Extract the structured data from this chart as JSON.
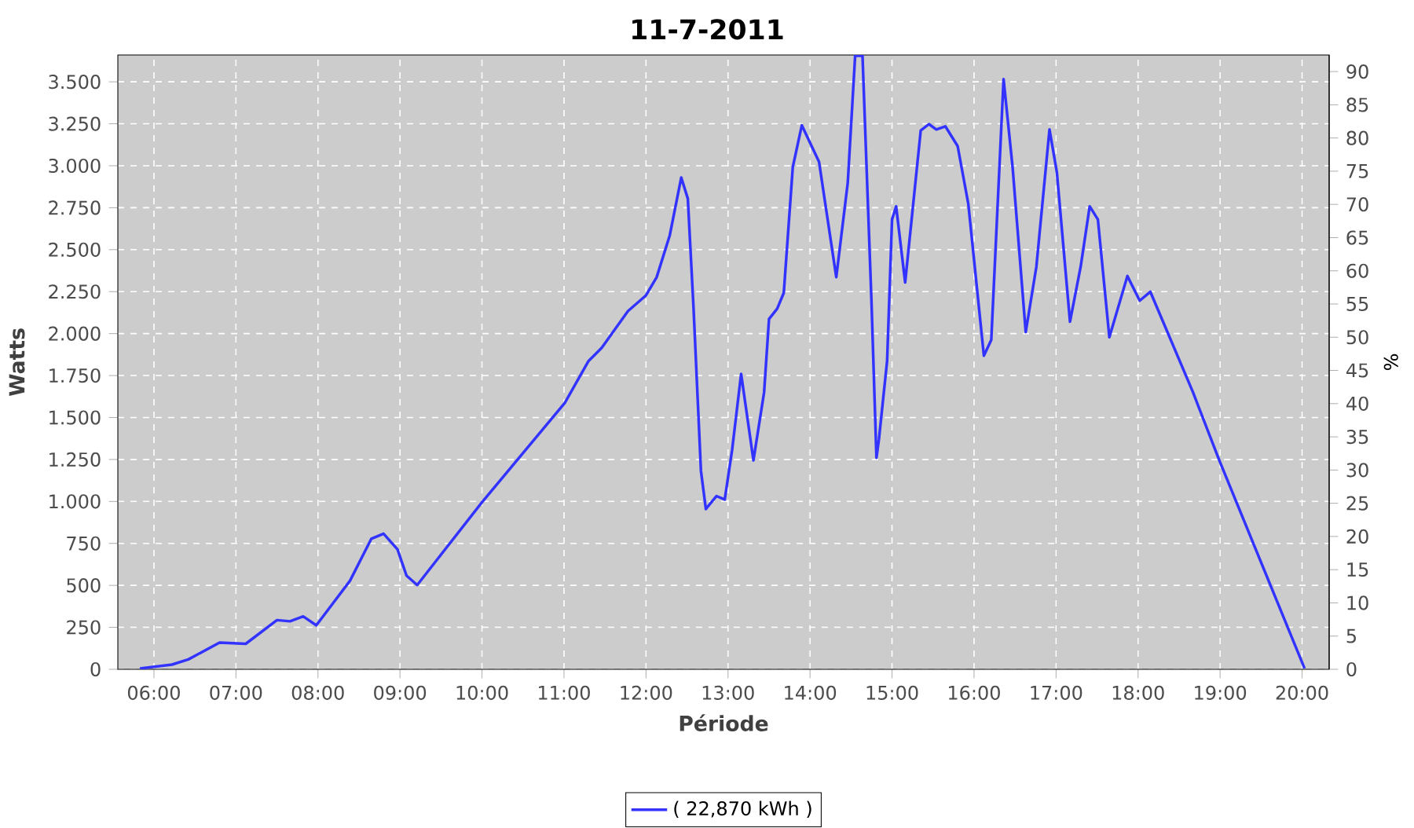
{
  "chart_data": {
    "type": "line",
    "title": "11-7-2011",
    "xlabel": "Période",
    "ylabel": "Watts",
    "y2label": "%",
    "x": [
      5.83,
      6.22,
      6.42,
      6.8,
      7.12,
      7.5,
      7.66,
      7.82,
      7.98,
      8.39,
      8.65,
      8.8,
      8.97,
      9.08,
      9.21,
      10.0,
      11.01,
      11.3,
      11.46,
      11.78,
      12.0,
      12.13,
      12.29,
      12.43,
      12.51,
      12.58,
      12.67,
      12.73,
      12.86,
      12.96,
      13.05,
      13.16,
      13.31,
      13.44,
      13.5,
      13.6,
      13.68,
      13.79,
      13.9,
      14.11,
      14.32,
      14.46,
      14.55,
      14.64,
      14.75,
      14.81,
      14.84,
      14.94,
      15.0,
      15.05,
      15.16,
      15.35,
      15.45,
      15.54,
      15.65,
      15.8,
      15.93,
      16.12,
      16.21,
      16.36,
      16.47,
      16.63,
      16.76,
      16.92,
      17.01,
      17.17,
      17.3,
      17.41,
      17.51,
      17.65,
      17.87,
      18.02,
      18.15,
      18.67,
      18.99,
      20.03
    ],
    "series": [
      {
        "name": "( 22,870 kWh )",
        "color": "#3333ff",
        "values": [
          5,
          28,
          59,
          159,
          152,
          293,
          286,
          315,
          262,
          527,
          777,
          808,
          714,
          558,
          502,
          995,
          1587,
          1837,
          1915,
          2134,
          2228,
          2336,
          2586,
          2930,
          2804,
          2149,
          1182,
          955,
          1032,
          1011,
          1307,
          1760,
          1245,
          1650,
          2087,
          2149,
          2243,
          2992,
          3241,
          3023,
          2336,
          2898,
          3655,
          3655,
          2181,
          1260,
          1369,
          1837,
          2680,
          2758,
          2305,
          3210,
          3248,
          3216,
          3235,
          3117,
          2773,
          1868,
          1962,
          3516,
          2992,
          2009,
          2399,
          3216,
          2961,
          2071,
          2399,
          2758,
          2680,
          1978,
          2343,
          2196,
          2249,
          1650,
          1245,
          5
        ]
      }
    ],
    "xlim": [
      5.56,
      20.33
    ],
    "xticks": [
      {
        "value": 6,
        "label": "06:00"
      },
      {
        "value": 7,
        "label": "07:00"
      },
      {
        "value": 8,
        "label": "08:00"
      },
      {
        "value": 9,
        "label": "09:00"
      },
      {
        "value": 10,
        "label": "10:00"
      },
      {
        "value": 11,
        "label": "11:00"
      },
      {
        "value": 12,
        "label": "12:00"
      },
      {
        "value": 13,
        "label": "13:00"
      },
      {
        "value": 14,
        "label": "14:00"
      },
      {
        "value": 15,
        "label": "15:00"
      },
      {
        "value": 16,
        "label": "16:00"
      },
      {
        "value": 17,
        "label": "17:00"
      },
      {
        "value": 18,
        "label": "18:00"
      },
      {
        "value": 19,
        "label": "19:00"
      },
      {
        "value": 20,
        "label": "20:00"
      }
    ],
    "ylim": [
      0,
      3660
    ],
    "yticks": [
      0,
      250,
      500,
      750,
      {
        "value": 1000,
        "label": "1.000"
      },
      {
        "value": 1250,
        "label": "1.250"
      },
      {
        "value": 1500,
        "label": "1.500"
      },
      {
        "value": 1750,
        "label": "1.750"
      },
      {
        "value": 2000,
        "label": "2.000"
      },
      {
        "value": 2250,
        "label": "2.250"
      },
      {
        "value": 2500,
        "label": "2.500"
      },
      {
        "value": 2750,
        "label": "2.750"
      },
      {
        "value": 3000,
        "label": "3.000"
      },
      {
        "value": 3250,
        "label": "3.250"
      },
      {
        "value": 3500,
        "label": "3.500"
      }
    ],
    "y2lim": [
      0,
      92.5
    ],
    "y2ticks": [
      0,
      5,
      10,
      15,
      20,
      25,
      30,
      35,
      40,
      45,
      50,
      55,
      60,
      65,
      70,
      75,
      80,
      85,
      90
    ],
    "grid": true,
    "legend": "bottom",
    "marker": "none",
    "line_style": "solid"
  }
}
